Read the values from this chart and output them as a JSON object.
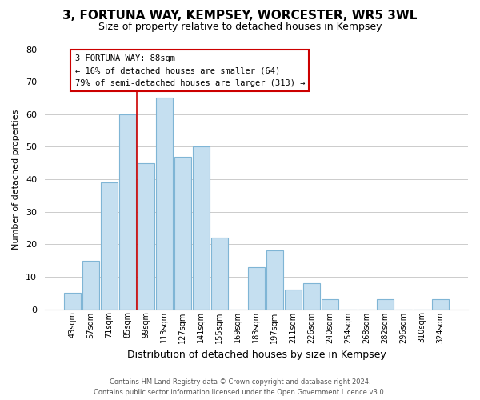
{
  "title_line1": "3, FORTUNA WAY, KEMPSEY, WORCESTER, WR5 3WL",
  "title_line2": "Size of property relative to detached houses in Kempsey",
  "xlabel": "Distribution of detached houses by size in Kempsey",
  "ylabel": "Number of detached properties",
  "bar_labels": [
    "43sqm",
    "57sqm",
    "71sqm",
    "85sqm",
    "99sqm",
    "113sqm",
    "127sqm",
    "141sqm",
    "155sqm",
    "169sqm",
    "183sqm",
    "197sqm",
    "211sqm",
    "226sqm",
    "240sqm",
    "254sqm",
    "268sqm",
    "282sqm",
    "296sqm",
    "310sqm",
    "324sqm"
  ],
  "bar_values": [
    5,
    15,
    39,
    60,
    45,
    65,
    47,
    50,
    22,
    0,
    13,
    18,
    6,
    8,
    3,
    0,
    0,
    3,
    0,
    0,
    3
  ],
  "bar_color": "#c5dff0",
  "bar_edge_color": "#7fb5d5",
  "annotation_line1": "3 FORTUNA WAY: 88sqm",
  "annotation_line2": "← 16% of detached houses are smaller (64)",
  "annotation_line3": "79% of semi-detached houses are larger (313) →",
  "annotation_box_edge_color": "#cc0000",
  "vline_x": 3.5,
  "vline_color": "#cc0000",
  "ylim": [
    0,
    80
  ],
  "yticks": [
    0,
    10,
    20,
    30,
    40,
    50,
    60,
    70,
    80
  ],
  "grid_color": "#cccccc",
  "footer_line1": "Contains HM Land Registry data © Crown copyright and database right 2024.",
  "footer_line2": "Contains public sector information licensed under the Open Government Licence v3.0.",
  "bg_color": "#ffffff"
}
